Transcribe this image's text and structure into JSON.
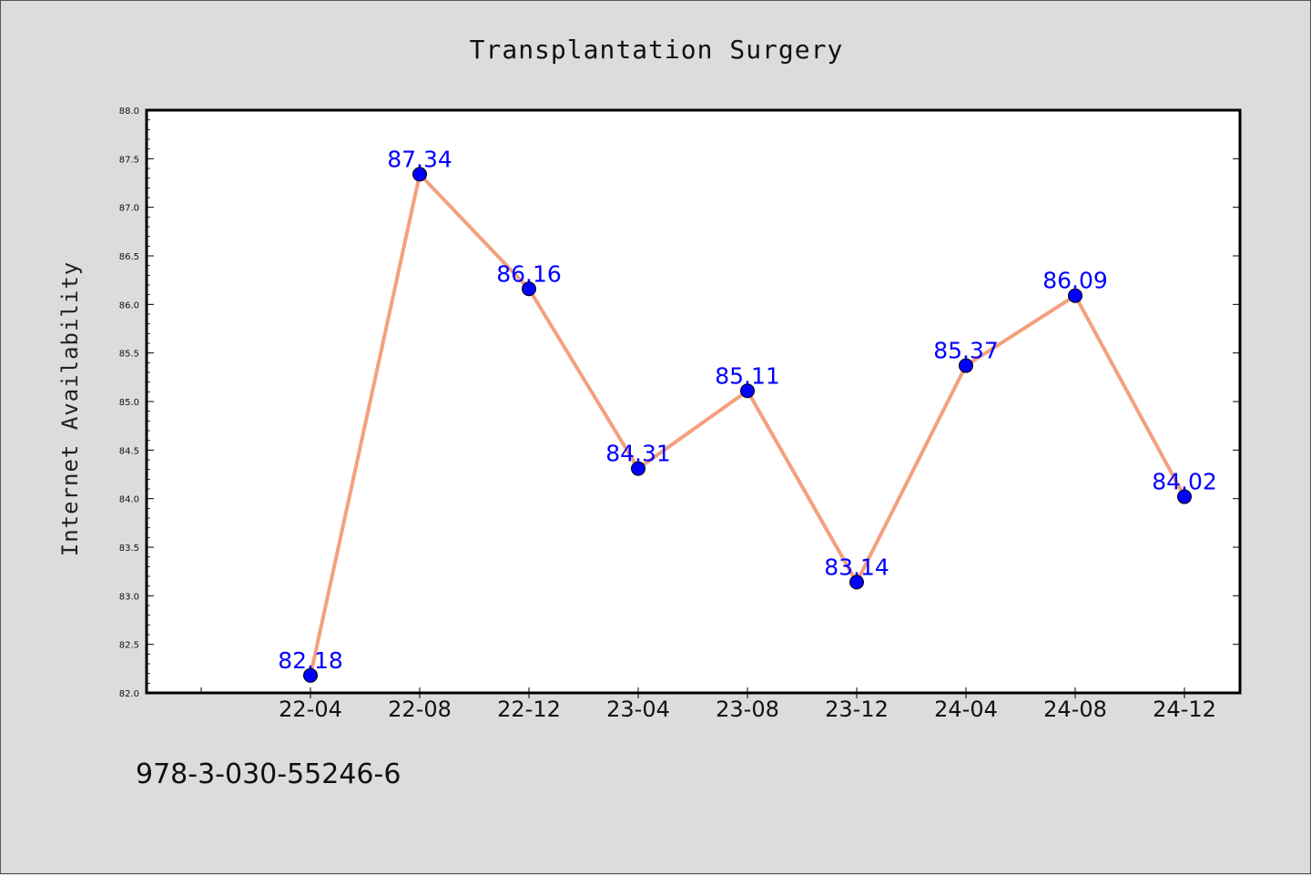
{
  "chart_data": {
    "type": "line",
    "title": "Transplantation Surgery",
    "xlabel": "",
    "ylabel": "Internet Availability",
    "categories": [
      "22-04",
      "22-08",
      "22-12",
      "23-04",
      "23-08",
      "23-12",
      "24-04",
      "24-08",
      "24-12"
    ],
    "series": [
      {
        "values": [
          82.18,
          87.34,
          86.16,
          84.31,
          85.11,
          83.14,
          85.37,
          86.09,
          84.02
        ],
        "labels": [
          "82.18",
          "87.34",
          "86.16",
          "84.31",
          "85.11",
          "83.14",
          "85.37",
          "86.09",
          "84.02"
        ]
      }
    ],
    "ylim": [
      82.0,
      88.0
    ],
    "yticks": [
      "82.0",
      "82.5",
      "83.0",
      "83.5",
      "84.0",
      "84.5",
      "85.0",
      "85.5",
      "86.0",
      "86.5",
      "87.0",
      "87.5",
      "88.0"
    ],
    "grid": false,
    "colors": {
      "line": "#f4a07e",
      "marker": "#0000ff",
      "label": "#0000ff",
      "background": "#dcdcdc",
      "plot_bg": "#ffffff"
    }
  },
  "footer": {
    "code": "978-3-030-55246-6"
  }
}
